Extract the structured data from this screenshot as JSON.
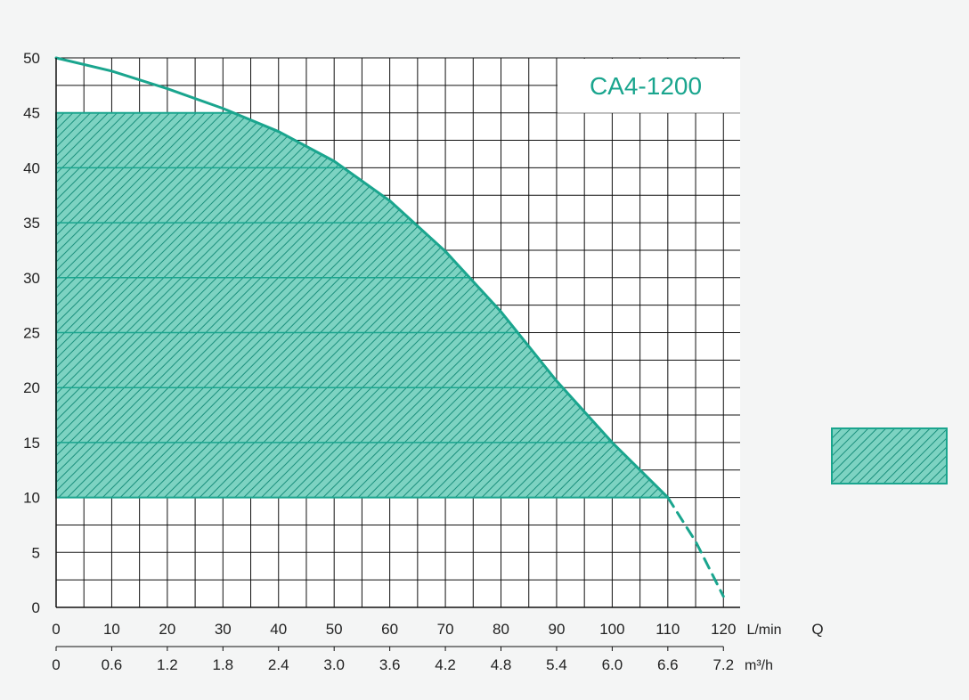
{
  "colors": {
    "curve": "#1aa58e",
    "fill": "#7dd3c2",
    "hatch": "#1a8f7c",
    "grid": "#111111",
    "title": "#1aa58e",
    "background": "#f4f5f5",
    "plot_background": "#ffffff"
  },
  "chart_data": {
    "type": "area",
    "title": "CA4-1200",
    "xlabel": "Q",
    "x_unit": "L/min",
    "x2_unit": "m³/h",
    "ylabel": "",
    "xlim": [
      0,
      123
    ],
    "ylim": [
      0,
      50
    ],
    "x_ticks": [
      "0",
      "10",
      "20",
      "30",
      "40",
      "50",
      "60",
      "70",
      "80",
      "90",
      "100",
      "110",
      "120"
    ],
    "x2_ticks": [
      "0",
      "0.6",
      "1.2",
      "1.8",
      "2.4",
      "3.0",
      "3.6",
      "4.2",
      "4.8",
      "5.4",
      "6.0",
      "6.6",
      "7.2"
    ],
    "y_ticks": [
      "0",
      "5",
      "10",
      "15",
      "20",
      "25",
      "30",
      "35",
      "40",
      "45",
      "50"
    ],
    "grid": true,
    "legend_position": "right",
    "series": [
      {
        "line_style": "solid",
        "x": [
          0,
          10,
          20,
          30,
          40,
          50,
          60,
          70,
          80,
          90,
          100,
          110
        ],
        "y": [
          50,
          48.8,
          47.2,
          45.4,
          43.3,
          40.6,
          37.0,
          32.4,
          26.9,
          20.6,
          15.0,
          10.0
        ]
      },
      {
        "line_style": "dashed",
        "x": [
          110,
          115,
          120
        ],
        "y": [
          10,
          6.0,
          1.0
        ]
      }
    ],
    "operating_region": {
      "y_min": 10,
      "y_max": 45,
      "x_min": 0,
      "x_max": 110
    }
  }
}
